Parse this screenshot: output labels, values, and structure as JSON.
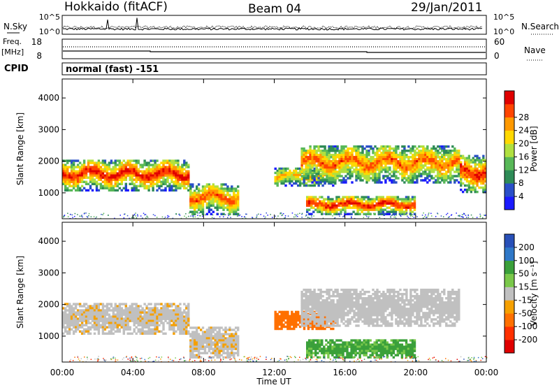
{
  "header": {
    "title": "Hokkaido (fitACF)",
    "beam": "Beam 04",
    "date": "29/Jan/2011"
  },
  "noise_panel": {
    "left_label": "N.Sky",
    "right_label": "N.Search",
    "left_ticks": [
      "10^5",
      "10^0"
    ],
    "right_ticks": [
      "10^5",
      "10^0"
    ]
  },
  "freq_panel": {
    "left_label_1": "Freq.",
    "left_label_2": "[MHz]",
    "right_label": "Nave",
    "left_ticks": [
      "18",
      "8"
    ],
    "right_ticks": [
      "60",
      "0"
    ]
  },
  "cpid": {
    "label": "CPID",
    "value": "normal (fast) -151"
  },
  "chart_data": [
    {
      "type": "heatmap",
      "name": "Power",
      "ylabel": "Slant Range [km]",
      "ylim": [
        180,
        4600
      ],
      "yticks": [
        "1000",
        "2000",
        "3000",
        "4000"
      ],
      "colorbar_label": "Power [dB]",
      "colorbar_ticks": [
        "4",
        "8",
        "12",
        "16",
        "20",
        "24",
        "28"
      ],
      "colors": [
        "#1a1aff",
        "#2a4fc8",
        "#2e8b57",
        "#58b858",
        "#b0e040",
        "#ffd800",
        "#ff9900",
        "#ff4500",
        "#e00000"
      ],
      "bands": [
        {
          "t": [
            0.0,
            7.2
          ],
          "r": [
            1050,
            2050
          ],
          "peak": 28
        },
        {
          "t": [
            7.2,
            10.0
          ],
          "r": [
            300,
            1300
          ],
          "peak": 24
        },
        {
          "t": [
            12.0,
            15.5
          ],
          "r": [
            1200,
            1800
          ],
          "peak": 20
        },
        {
          "t": [
            13.5,
            22.5
          ],
          "r": [
            1300,
            2500
          ],
          "peak": 24
        },
        {
          "t": [
            13.8,
            20.0
          ],
          "r": [
            300,
            900
          ],
          "peak": 28
        },
        {
          "t": [
            22.5,
            24.0
          ],
          "r": [
            1000,
            2200
          ],
          "peak": 28
        }
      ]
    },
    {
      "type": "heatmap",
      "name": "Velocity",
      "ylabel": "Slant Range [km]",
      "xlabel": "Time UT",
      "ylim": [
        180,
        4600
      ],
      "yticks": [
        "1000",
        "2000",
        "3000",
        "4000"
      ],
      "xticks": [
        "00:00",
        "04:00",
        "08:00",
        "12:00",
        "16:00",
        "20:00",
        "00:00"
      ],
      "colorbar_label": "Velocity [m s⁻¹]",
      "colorbar_ticks": [
        "200",
        "100",
        "50",
        "15",
        "-15",
        "-50",
        "-100",
        "-200"
      ],
      "colors": [
        "#2850b8",
        "#2f78c8",
        "#3aa03a",
        "#7ac84a",
        "#c0c0c0",
        "#f5a000",
        "#ff7000",
        "#ff3000",
        "#e00000"
      ],
      "bands": [
        {
          "t": [
            0.0,
            7.2
          ],
          "r": [
            1050,
            2050
          ],
          "velocity": -5
        },
        {
          "t": [
            7.2,
            10.0
          ],
          "r": [
            300,
            1300
          ],
          "velocity": -5
        },
        {
          "t": [
            12.0,
            15.5
          ],
          "r": [
            1200,
            1800
          ],
          "velocity": -60
        },
        {
          "t": [
            13.5,
            22.5
          ],
          "r": [
            1300,
            2500
          ],
          "velocity": 0
        },
        {
          "t": [
            13.8,
            20.0
          ],
          "r": [
            300,
            900
          ],
          "velocity": 40
        }
      ]
    }
  ]
}
